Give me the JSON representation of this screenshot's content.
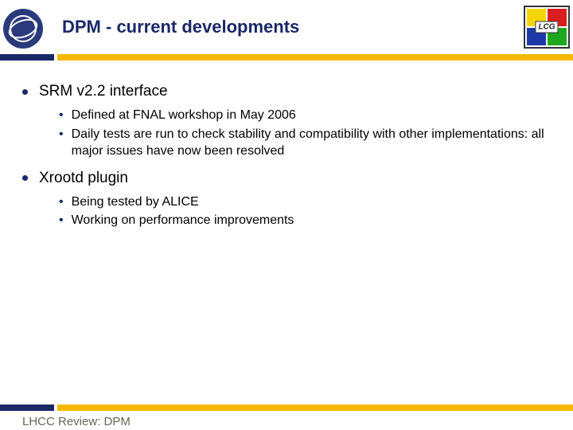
{
  "header": {
    "title": "DPM - current developments",
    "lcg_label": "LCG",
    "title_color": "#1a2868"
  },
  "colors": {
    "accent_blue": "#1a2868",
    "accent_yellow": "#f5b800",
    "cern_bg": "#2a3a7a",
    "lcg_q1": "#f5d500",
    "lcg_q2": "#d81e1e",
    "lcg_q3": "#1e3aa8",
    "lcg_q4": "#1fa81f"
  },
  "content": {
    "items": [
      {
        "heading": "SRM v2.2 interface",
        "subs": [
          "Defined at FNAL workshop in May 2006",
          "Daily tests are run to check stability and compatibility with other implementations: all major issues have now been resolved"
        ]
      },
      {
        "heading": "Xrootd plugin",
        "subs": [
          "Being tested by ALICE",
          "Working on performance improvements"
        ]
      }
    ]
  },
  "footer": {
    "text": "LHCC Review: DPM"
  }
}
